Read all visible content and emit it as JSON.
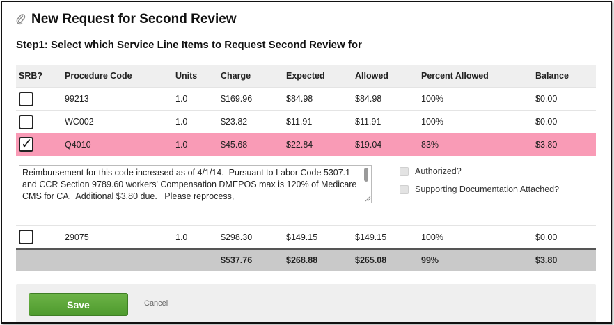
{
  "header": {
    "title": "New Request for Second Review",
    "icon": "paperclip-icon"
  },
  "step_label": "Step1: Select which Service Line Items to Request Second Review for",
  "table": {
    "columns": [
      "SRB?",
      "Procedure Code",
      "Units",
      "Charge",
      "Expected",
      "Allowed",
      "Percent Allowed",
      "Balance"
    ],
    "rows": [
      {
        "checked": false,
        "code": "99213",
        "units": "1.0",
        "charge": "$169.96",
        "expected": "$84.98",
        "allowed": "$84.98",
        "percent": "100%",
        "balance": "$0.00"
      },
      {
        "checked": false,
        "code": "WC002",
        "units": "1.0",
        "charge": "$23.82",
        "expected": "$11.91",
        "allowed": "$11.91",
        "percent": "100%",
        "balance": "$0.00"
      },
      {
        "checked": true,
        "code": "Q4010",
        "units": "1.0",
        "charge": "$45.68",
        "expected": "$22.84",
        "allowed": "$19.04",
        "percent": "83%",
        "balance": "$3.80"
      },
      {
        "checked": false,
        "code": "29075",
        "units": "1.0",
        "charge": "$298.30",
        "expected": "$149.15",
        "allowed": "$149.15",
        "percent": "100%",
        "balance": "$0.00"
      }
    ],
    "totals": {
      "charge": "$537.76",
      "expected": "$268.88",
      "allowed": "$265.08",
      "percent": "99%",
      "balance": "$3.80"
    },
    "selected_row_color": "#f99bb6"
  },
  "detail": {
    "notes": "Reimbursement for this code increased as of 4/1/14.  Pursuant to Labor Code 5307.1 and CCR Section 9789.60 workers' Compensation DMEPOS max is 120% of Medicare CMS for CA.  Additional $3.80 due.   Please reprocess,",
    "authorized_label": "Authorized?",
    "supporting_docs_label": "Supporting Documentation Attached?"
  },
  "footer": {
    "save_label": "Save",
    "cancel_label": "Cancel",
    "save_color": "#5aa53a"
  }
}
